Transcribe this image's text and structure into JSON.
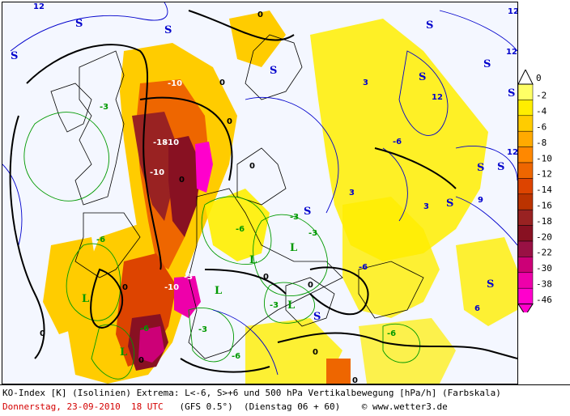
{
  "map": {
    "contour_labels": [
      {
        "text": "0",
        "color": "#000000"
      },
      {
        "text": "0",
        "color": "#000000"
      },
      {
        "text": "0",
        "color": "#000000"
      },
      {
        "text": "0",
        "color": "#000000"
      },
      {
        "text": "0",
        "color": "#000000"
      },
      {
        "text": "0",
        "color": "#000000"
      },
      {
        "text": "0",
        "color": "#000000"
      },
      {
        "text": "0",
        "color": "#000000"
      },
      {
        "text": "0",
        "color": "#000000"
      },
      {
        "text": "0",
        "color": "#000000"
      },
      {
        "text": "0",
        "color": "#000000"
      },
      {
        "text": "0",
        "color": "#000000"
      },
      {
        "text": "12",
        "color": "#0000cc"
      },
      {
        "text": "12",
        "color": "#0000cc"
      },
      {
        "text": "12",
        "color": "#0000cc"
      },
      {
        "text": "12",
        "color": "#0000cc"
      },
      {
        "text": "12",
        "color": "#0000cc"
      },
      {
        "text": "-6",
        "color": "#009900"
      },
      {
        "text": "-6",
        "color": "#009900"
      },
      {
        "text": "-6",
        "color": "#009900"
      },
      {
        "text": "-6",
        "color": "#009900"
      },
      {
        "text": "-6",
        "color": "#009900"
      },
      {
        "text": "-3",
        "color": "#009900"
      },
      {
        "text": "-3",
        "color": "#009900"
      },
      {
        "text": "-3",
        "color": "#009900"
      },
      {
        "text": "-3",
        "color": "#009900"
      },
      {
        "text": "-3",
        "color": "#009900"
      },
      {
        "text": "-10",
        "color": "#ffffff"
      },
      {
        "text": "-10",
        "color": "#ffffff"
      },
      {
        "text": "-10",
        "color": "#ffffff"
      },
      {
        "text": "-10",
        "color": "#ffffff"
      },
      {
        "text": "-18",
        "color": "#ffffff"
      },
      {
        "text": "-3",
        "color": "#ffffff"
      },
      {
        "text": "3",
        "color": "#0000cc"
      },
      {
        "text": "3",
        "color": "#0000cc"
      },
      {
        "text": "3",
        "color": "#0000cc"
      },
      {
        "text": "9",
        "color": "#0000cc"
      },
      {
        "text": "6",
        "color": "#0000cc"
      },
      {
        "text": "-6",
        "color": "#0000cc"
      },
      {
        "text": "-6",
        "color": "#0000cc"
      }
    ],
    "extrema_markers": [
      {
        "text": "S",
        "color": "#0000cc"
      },
      {
        "text": "S",
        "color": "#0000cc"
      },
      {
        "text": "S",
        "color": "#0000cc"
      },
      {
        "text": "S",
        "color": "#0000cc"
      },
      {
        "text": "S",
        "color": "#0000cc"
      },
      {
        "text": "S",
        "color": "#0000cc"
      },
      {
        "text": "S",
        "color": "#0000cc"
      },
      {
        "text": "S",
        "color": "#0000cc"
      },
      {
        "text": "S",
        "color": "#0000cc"
      },
      {
        "text": "S",
        "color": "#0000cc"
      },
      {
        "text": "S",
        "color": "#0000cc"
      },
      {
        "text": "S",
        "color": "#0000cc"
      },
      {
        "text": "S",
        "color": "#0000cc"
      },
      {
        "text": "S",
        "color": "#0000cc"
      },
      {
        "text": "L",
        "color": "#009900"
      },
      {
        "text": "L",
        "color": "#009900"
      },
      {
        "text": "L",
        "color": "#009900"
      },
      {
        "text": "L",
        "color": "#009900"
      },
      {
        "text": "L",
        "color": "#009900"
      },
      {
        "text": "L",
        "color": "#009900"
      }
    ]
  },
  "legend": {
    "steps": [
      {
        "label": "0",
        "color": "#ffffff"
      },
      {
        "label": "-2",
        "color": "#ffff66"
      },
      {
        "label": "-4",
        "color": "#ffee00"
      },
      {
        "label": "-6",
        "color": "#ffcc00"
      },
      {
        "label": "-8",
        "color": "#ffaa00"
      },
      {
        "label": "-10",
        "color": "#ff8800"
      },
      {
        "label": "-12",
        "color": "#ee6600"
      },
      {
        "label": "-14",
        "color": "#dd4400"
      },
      {
        "label": "-16",
        "color": "#bb3300"
      },
      {
        "label": "-18",
        "color": "#992222"
      },
      {
        "label": "-20",
        "color": "#881122"
      },
      {
        "label": "-22",
        "color": "#991144"
      },
      {
        "label": "-30",
        "color": "#cc0077"
      },
      {
        "label": "-38",
        "color": "#ee00aa"
      },
      {
        "label": "-46",
        "color": "#ff00cc"
      }
    ]
  },
  "caption": {
    "line1": "KO-Index [K] (Isolinien) Extrema: L<-6, S>+6 und 500 hPa Vertikalbewegung [hPa/h] (Farbskala)",
    "date": "Donnerstag, 23-09-2010  18 UTC",
    "model": "   (GFS 0.5°)  (Dienstag 06 + 60)",
    "copyright": "© www.wetter3.de"
  },
  "colors": {
    "isoline_zero": "#000000",
    "isoline_positive": "#0000cc",
    "isoline_negative": "#009900",
    "coastline": "#000000",
    "date_text": "#d40000"
  }
}
